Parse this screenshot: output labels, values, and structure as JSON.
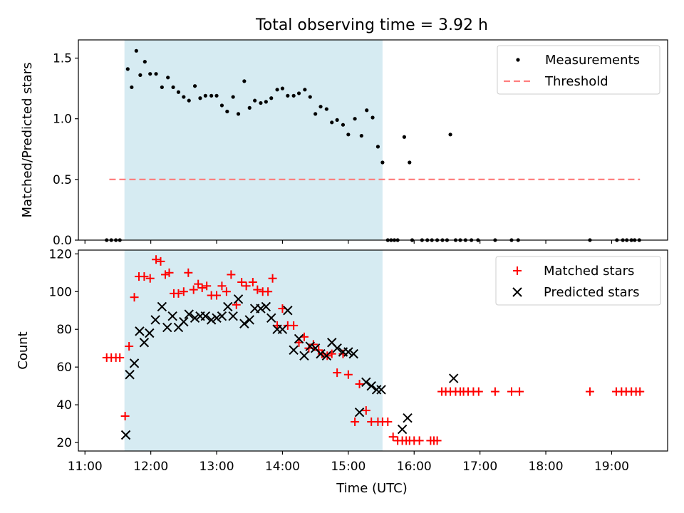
{
  "figure": {
    "title": "Total observing time = 3.92 h",
    "xlabel": "Time (UTC)",
    "xticks": [
      {
        "v": 11,
        "label": "11:00"
      },
      {
        "v": 12,
        "label": "12:00"
      },
      {
        "v": 13,
        "label": "13:00"
      },
      {
        "v": 14,
        "label": "14:00"
      },
      {
        "v": 15,
        "label": "15:00"
      },
      {
        "v": 16,
        "label": "16:00"
      },
      {
        "v": 17,
        "label": "17:00"
      },
      {
        "v": 18,
        "label": "18:00"
      },
      {
        "v": 19,
        "label": "19:00"
      }
    ],
    "xlim": [
      10.9,
      19.85
    ],
    "shaded_span": [
      11.6,
      15.52
    ],
    "shade_color": "#add8e6",
    "legend_top": {
      "entries": [
        "Measurements",
        "Threshold"
      ]
    },
    "legend_bottom": {
      "entries": [
        "Matched stars",
        "Predicted stars"
      ]
    }
  },
  "chart_data": [
    {
      "type": "scatter",
      "panel": "top",
      "ylabel": "Matched/Predicted stars",
      "ylim": [
        0,
        1.65
      ],
      "yticks": [
        {
          "v": 0,
          "label": "0.0"
        },
        {
          "v": 0.5,
          "label": "0.5"
        },
        {
          "v": 1.0,
          "label": "1.0"
        },
        {
          "v": 1.5,
          "label": "1.5"
        }
      ],
      "legend": "top-right",
      "series": [
        {
          "name": "Measurements",
          "color": "#000000",
          "x": [
            11.33,
            11.4,
            11.47,
            11.53,
            11.65,
            11.71,
            11.78,
            11.84,
            11.91,
            11.99,
            12.08,
            12.17,
            12.26,
            12.34,
            12.42,
            12.5,
            12.58,
            12.67,
            12.75,
            12.83,
            12.92,
            13.0,
            13.08,
            13.16,
            13.25,
            13.33,
            13.42,
            13.5,
            13.58,
            13.67,
            13.75,
            13.83,
            13.92,
            14.0,
            14.08,
            14.17,
            14.25,
            14.34,
            14.42,
            14.5,
            14.58,
            14.67,
            14.75,
            14.83,
            14.92,
            15.0,
            15.1,
            15.2,
            15.28,
            15.37,
            15.45,
            15.52,
            15.6,
            15.65,
            15.7,
            15.75,
            15.85,
            15.93,
            15.97,
            16.12,
            16.2,
            16.27,
            16.35,
            16.43,
            16.5,
            16.55,
            16.63,
            16.7,
            16.78,
            16.87,
            16.97,
            17.23,
            17.48,
            17.58,
            18.67,
            19.08,
            19.17,
            19.23,
            19.3,
            19.35,
            19.42
          ],
          "y": [
            0,
            0,
            0,
            0,
            1.41,
            1.26,
            1.56,
            1.36,
            1.47,
            1.37,
            1.37,
            1.26,
            1.34,
            1.26,
            1.22,
            1.18,
            1.15,
            1.27,
            1.17,
            1.19,
            1.19,
            1.19,
            1.11,
            1.06,
            1.18,
            1.04,
            1.31,
            1.09,
            1.15,
            1.13,
            1.14,
            1.17,
            1.24,
            1.25,
            1.19,
            1.19,
            1.21,
            1.24,
            1.18,
            1.04,
            1.1,
            1.08,
            0.97,
            0.99,
            0.95,
            0.87,
            1.0,
            0.86,
            1.07,
            1.01,
            0.77,
            0.64,
            0,
            0,
            0,
            0,
            0.85,
            0.64,
            0,
            0,
            0,
            0,
            0,
            0,
            0,
            0.87,
            0,
            0,
            0,
            0,
            0,
            0,
            0,
            0,
            0,
            0,
            0,
            0,
            0,
            0,
            0
          ]
        },
        {
          "name": "Threshold",
          "color": "#ff7f7f",
          "style": "dashed",
          "x": [
            11.37,
            19.43
          ],
          "y": [
            0.5,
            0.5
          ]
        }
      ]
    },
    {
      "type": "scatter",
      "panel": "bottom",
      "ylabel": "Count",
      "ylim": [
        15.5,
        122
      ],
      "yticks": [
        {
          "v": 20,
          "label": "20"
        },
        {
          "v": 40,
          "label": "40"
        },
        {
          "v": 60,
          "label": "60"
        },
        {
          "v": 80,
          "label": "80"
        },
        {
          "v": 100,
          "label": "100"
        },
        {
          "v": 120,
          "label": "120"
        }
      ],
      "legend": "top-right",
      "series": [
        {
          "name": "Matched stars",
          "marker": "+",
          "color": "#ff0000",
          "x": [
            11.33,
            11.4,
            11.47,
            11.53,
            11.61,
            11.67,
            11.75,
            11.82,
            11.9,
            11.99,
            12.08,
            12.15,
            12.22,
            12.28,
            12.35,
            12.42,
            12.5,
            12.57,
            12.65,
            12.72,
            12.78,
            12.85,
            12.92,
            13.0,
            13.08,
            13.15,
            13.22,
            13.3,
            13.38,
            13.45,
            13.55,
            13.62,
            13.7,
            13.78,
            13.85,
            13.92,
            14.0,
            14.08,
            14.17,
            14.25,
            14.33,
            14.4,
            14.47,
            14.55,
            14.6,
            14.68,
            14.75,
            14.83,
            14.92,
            15.0,
            15.1,
            15.17,
            15.27,
            15.35,
            15.45,
            15.52,
            15.6,
            15.68,
            15.75,
            15.82,
            15.88,
            15.93,
            16.0,
            16.08,
            16.25,
            16.3,
            16.35,
            16.42,
            16.48,
            16.55,
            16.63,
            16.7,
            16.75,
            16.82,
            16.9,
            16.98,
            17.23,
            17.48,
            17.6,
            18.67,
            19.07,
            19.15,
            19.22,
            19.3,
            19.37,
            19.43
          ],
          "y": [
            65,
            65,
            65,
            65,
            34,
            71,
            97,
            108,
            108,
            107,
            117,
            116,
            109,
            110,
            99,
            99,
            100,
            110,
            101,
            104,
            102,
            103,
            98,
            98,
            103,
            100,
            109,
            93,
            105,
            103,
            105,
            101,
            100,
            100,
            107,
            82,
            91,
            82,
            82,
            73,
            76,
            70,
            72,
            69,
            67,
            66,
            67,
            57,
            67,
            56,
            31,
            51,
            37,
            31,
            31,
            31,
            31,
            23,
            21,
            21,
            21,
            21,
            21,
            21,
            21,
            21,
            21,
            47,
            47,
            47,
            47,
            47,
            47,
            47,
            47,
            47,
            47,
            47,
            47,
            47,
            47,
            47,
            47,
            47,
            47,
            47
          ]
        },
        {
          "name": "Predicted stars",
          "marker": "x",
          "color": "#000000",
          "x": [
            11.62,
            11.68,
            11.75,
            11.83,
            11.9,
            11.98,
            12.07,
            12.17,
            12.25,
            12.33,
            12.42,
            12.5,
            12.58,
            12.67,
            12.75,
            12.83,
            12.92,
            13.0,
            13.08,
            13.17,
            13.25,
            13.33,
            13.42,
            13.5,
            13.58,
            13.67,
            13.75,
            13.83,
            13.92,
            14.0,
            14.08,
            14.17,
            14.25,
            14.33,
            14.42,
            14.5,
            14.58,
            14.67,
            14.75,
            14.83,
            14.92,
            15.0,
            15.08,
            15.17,
            15.27,
            15.35,
            15.43,
            15.5,
            15.82,
            15.9,
            16.6
          ],
          "y": [
            24,
            56,
            62,
            79,
            73,
            78,
            85,
            92,
            81,
            87,
            81,
            84,
            88,
            86,
            87,
            87,
            85,
            86,
            87,
            92,
            87,
            96,
            83,
            85,
            91,
            91,
            92,
            86,
            80,
            80,
            90,
            69,
            75,
            66,
            71,
            70,
            67,
            66,
            73,
            70,
            68,
            68,
            67,
            36,
            52,
            50,
            48,
            48,
            27,
            33,
            54
          ]
        }
      ]
    }
  ]
}
